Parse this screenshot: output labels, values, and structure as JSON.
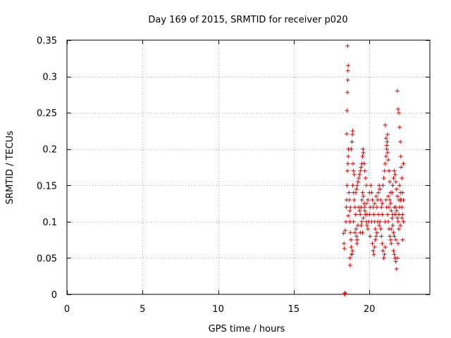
{
  "chart_data": {
    "type": "scatter",
    "title": "Day 169 of 2015, SRMTID for receiver p020",
    "xlabel": "GPS time / hours",
    "ylabel": "SRMTID / TECUs",
    "xlim": [
      0,
      24
    ],
    "ylim": [
      0,
      0.35
    ],
    "xticks": [
      0,
      5,
      10,
      15,
      20
    ],
    "xtick_labels": [
      "0",
      "5",
      "10",
      "15",
      "20"
    ],
    "yticks": [
      0,
      0.05,
      0.1,
      0.15,
      0.2,
      0.25,
      0.3,
      0.35
    ],
    "ytick_labels": [
      "0",
      "0.05",
      "0.1",
      "0.15",
      "0.2",
      "0.25",
      "0.3",
      "0.35"
    ],
    "grid": true,
    "marker": "+",
    "color": "#e00000",
    "series": [
      {
        "name": "SRMTID",
        "points": [
          [
            18.36,
            0.0
          ],
          [
            18.38,
            0.0
          ],
          [
            18.4,
            0.002
          ],
          [
            18.37,
            0.001
          ],
          [
            18.3,
            0.084
          ],
          [
            18.32,
            0.07
          ],
          [
            18.35,
            0.063
          ],
          [
            18.4,
            0.088
          ],
          [
            18.45,
            0.1
          ],
          [
            18.48,
            0.12
          ],
          [
            18.5,
            0.13
          ],
          [
            18.52,
            0.15
          ],
          [
            18.55,
            0.17
          ],
          [
            18.58,
            0.18
          ],
          [
            18.6,
            0.19
          ],
          [
            18.62,
            0.2
          ],
          [
            18.5,
            0.221
          ],
          [
            18.52,
            0.253
          ],
          [
            18.55,
            0.278
          ],
          [
            18.57,
            0.295
          ],
          [
            18.58,
            0.308
          ],
          [
            18.6,
            0.315
          ],
          [
            18.56,
            0.342
          ],
          [
            18.65,
            0.14
          ],
          [
            18.68,
            0.13
          ],
          [
            18.7,
            0.115
          ],
          [
            18.72,
            0.1
          ],
          [
            18.75,
            0.085
          ],
          [
            18.78,
            0.075
          ],
          [
            18.8,
            0.065
          ],
          [
            18.83,
            0.055
          ],
          [
            18.7,
            0.05
          ],
          [
            18.72,
            0.04
          ],
          [
            18.85,
            0.055
          ],
          [
            18.88,
            0.06
          ],
          [
            18.8,
            0.2
          ],
          [
            18.85,
            0.21
          ],
          [
            18.88,
            0.22
          ],
          [
            18.9,
            0.225
          ],
          [
            18.92,
            0.18
          ],
          [
            18.95,
            0.17
          ],
          [
            19.0,
            0.165
          ],
          [
            18.9,
            0.15
          ],
          [
            18.95,
            0.14
          ],
          [
            19.0,
            0.13
          ],
          [
            19.05,
            0.12
          ],
          [
            19.1,
            0.11
          ],
          [
            19.12,
            0.09
          ],
          [
            19.15,
            0.08
          ],
          [
            19.18,
            0.07
          ],
          [
            19.2,
            0.075
          ],
          [
            19.1,
            0.14
          ],
          [
            19.15,
            0.145
          ],
          [
            19.2,
            0.15
          ],
          [
            19.25,
            0.155
          ],
          [
            19.3,
            0.16
          ],
          [
            19.35,
            0.165
          ],
          [
            19.4,
            0.17
          ],
          [
            19.45,
            0.175
          ],
          [
            19.5,
            0.18
          ],
          [
            19.55,
            0.19
          ],
          [
            19.58,
            0.2
          ],
          [
            19.6,
            0.195
          ],
          [
            19.65,
            0.18
          ],
          [
            19.7,
            0.17
          ],
          [
            19.75,
            0.16
          ],
          [
            19.8,
            0.15
          ],
          [
            19.3,
            0.12
          ],
          [
            19.35,
            0.115
          ],
          [
            19.4,
            0.11
          ],
          [
            19.45,
            0.12
          ],
          [
            19.5,
            0.13
          ],
          [
            19.55,
            0.14
          ],
          [
            19.6,
            0.135
          ],
          [
            19.65,
            0.125
          ],
          [
            19.7,
            0.12
          ],
          [
            19.75,
            0.11
          ],
          [
            19.8,
            0.1
          ],
          [
            19.85,
            0.095
          ],
          [
            19.9,
            0.09
          ],
          [
            19.95,
            0.1
          ],
          [
            20.0,
            0.11
          ],
          [
            20.05,
            0.12
          ],
          [
            19.4,
            0.085
          ],
          [
            19.45,
            0.095
          ],
          [
            19.5,
            0.1
          ],
          [
            19.6,
            0.105
          ],
          [
            19.7,
            0.115
          ],
          [
            19.8,
            0.125
          ],
          [
            19.9,
            0.13
          ],
          [
            20.0,
            0.14
          ],
          [
            20.1,
            0.15
          ],
          [
            20.15,
            0.14
          ],
          [
            20.2,
            0.13
          ],
          [
            20.25,
            0.12
          ],
          [
            20.3,
            0.11
          ],
          [
            20.35,
            0.1
          ],
          [
            20.4,
            0.09
          ],
          [
            20.45,
            0.08
          ],
          [
            20.2,
            0.07
          ],
          [
            20.25,
            0.06
          ],
          [
            20.3,
            0.055
          ],
          [
            20.35,
            0.065
          ],
          [
            20.4,
            0.075
          ],
          [
            20.5,
            0.085
          ],
          [
            20.55,
            0.1
          ],
          [
            20.6,
            0.11
          ],
          [
            20.5,
            0.12
          ],
          [
            20.55,
            0.13
          ],
          [
            20.6,
            0.14
          ],
          [
            20.65,
            0.15
          ],
          [
            20.7,
            0.145
          ],
          [
            20.75,
            0.13
          ],
          [
            20.8,
            0.12
          ],
          [
            20.85,
            0.11
          ],
          [
            20.7,
            0.1
          ],
          [
            20.75,
            0.09
          ],
          [
            20.8,
            0.08
          ],
          [
            20.85,
            0.07
          ],
          [
            20.9,
            0.06
          ],
          [
            20.95,
            0.05
          ],
          [
            21.0,
            0.055
          ],
          [
            21.05,
            0.065
          ],
          [
            20.9,
            0.15
          ],
          [
            20.95,
            0.16
          ],
          [
            21.0,
            0.17
          ],
          [
            21.05,
            0.18
          ],
          [
            21.1,
            0.19
          ],
          [
            21.15,
            0.2
          ],
          [
            21.18,
            0.21
          ],
          [
            21.2,
            0.22
          ],
          [
            21.05,
            0.233
          ],
          [
            21.1,
            0.215
          ],
          [
            21.15,
            0.205
          ],
          [
            21.2,
            0.195
          ],
          [
            21.25,
            0.185
          ],
          [
            21.3,
            0.17
          ],
          [
            21.35,
            0.155
          ],
          [
            21.4,
            0.14
          ],
          [
            21.1,
            0.13
          ],
          [
            21.15,
            0.12
          ],
          [
            21.2,
            0.11
          ],
          [
            21.25,
            0.1
          ],
          [
            21.3,
            0.09
          ],
          [
            21.35,
            0.08
          ],
          [
            21.4,
            0.075
          ],
          [
            21.45,
            0.07
          ],
          [
            21.3,
            0.12
          ],
          [
            21.35,
            0.13
          ],
          [
            21.4,
            0.125
          ],
          [
            21.45,
            0.115
          ],
          [
            21.5,
            0.105
          ],
          [
            21.55,
            0.095
          ],
          [
            21.6,
            0.085
          ],
          [
            21.65,
            0.08
          ],
          [
            21.5,
            0.14
          ],
          [
            21.55,
            0.15
          ],
          [
            21.6,
            0.16
          ],
          [
            21.65,
            0.17
          ],
          [
            21.7,
            0.165
          ],
          [
            21.75,
            0.155
          ],
          [
            21.8,
            0.145
          ],
          [
            21.85,
            0.135
          ],
          [
            21.6,
            0.06
          ],
          [
            21.65,
            0.055
          ],
          [
            21.7,
            0.05
          ],
          [
            21.75,
            0.045
          ],
          [
            21.8,
            0.035
          ],
          [
            21.85,
            0.05
          ],
          [
            21.9,
            0.07
          ],
          [
            21.95,
            0.09
          ],
          [
            21.7,
            0.11
          ],
          [
            21.75,
            0.12
          ],
          [
            21.8,
            0.115
          ],
          [
            21.85,
            0.105
          ],
          [
            21.9,
            0.1
          ],
          [
            21.95,
            0.11
          ],
          [
            22.0,
            0.12
          ],
          [
            22.05,
            0.13
          ],
          [
            21.85,
            0.28
          ],
          [
            21.9,
            0.255
          ],
          [
            21.95,
            0.25
          ],
          [
            22.0,
            0.23
          ],
          [
            22.05,
            0.21
          ],
          [
            22.08,
            0.19
          ],
          [
            22.1,
            0.175
          ],
          [
            22.15,
            0.16
          ],
          [
            22.0,
            0.15
          ],
          [
            22.05,
            0.14
          ],
          [
            22.1,
            0.13
          ],
          [
            22.15,
            0.12
          ],
          [
            22.2,
            0.11
          ],
          [
            22.25,
            0.1
          ],
          [
            22.2,
            0.075
          ],
          [
            22.25,
            0.18
          ],
          [
            18.6,
            0.108
          ],
          [
            18.75,
            0.12
          ],
          [
            18.95,
            0.1
          ],
          [
            19.05,
            0.085
          ],
          [
            19.25,
            0.095
          ],
          [
            19.55,
            0.085
          ],
          [
            19.85,
            0.11
          ],
          [
            20.05,
            0.08
          ],
          [
            20.15,
            0.1
          ],
          [
            20.35,
            0.125
          ],
          [
            20.45,
            0.135
          ],
          [
            20.65,
            0.095
          ],
          [
            20.85,
            0.125
          ],
          [
            21.05,
            0.1
          ],
          [
            21.25,
            0.135
          ],
          [
            21.45,
            0.09
          ],
          [
            21.55,
            0.11
          ],
          [
            21.65,
            0.12
          ],
          [
            21.75,
            0.075
          ],
          [
            21.95,
            0.13
          ],
          [
            22.05,
            0.095
          ],
          [
            22.15,
            0.105
          ],
          [
            22.2,
            0.14
          ],
          [
            22.25,
            0.13
          ]
        ]
      }
    ]
  }
}
